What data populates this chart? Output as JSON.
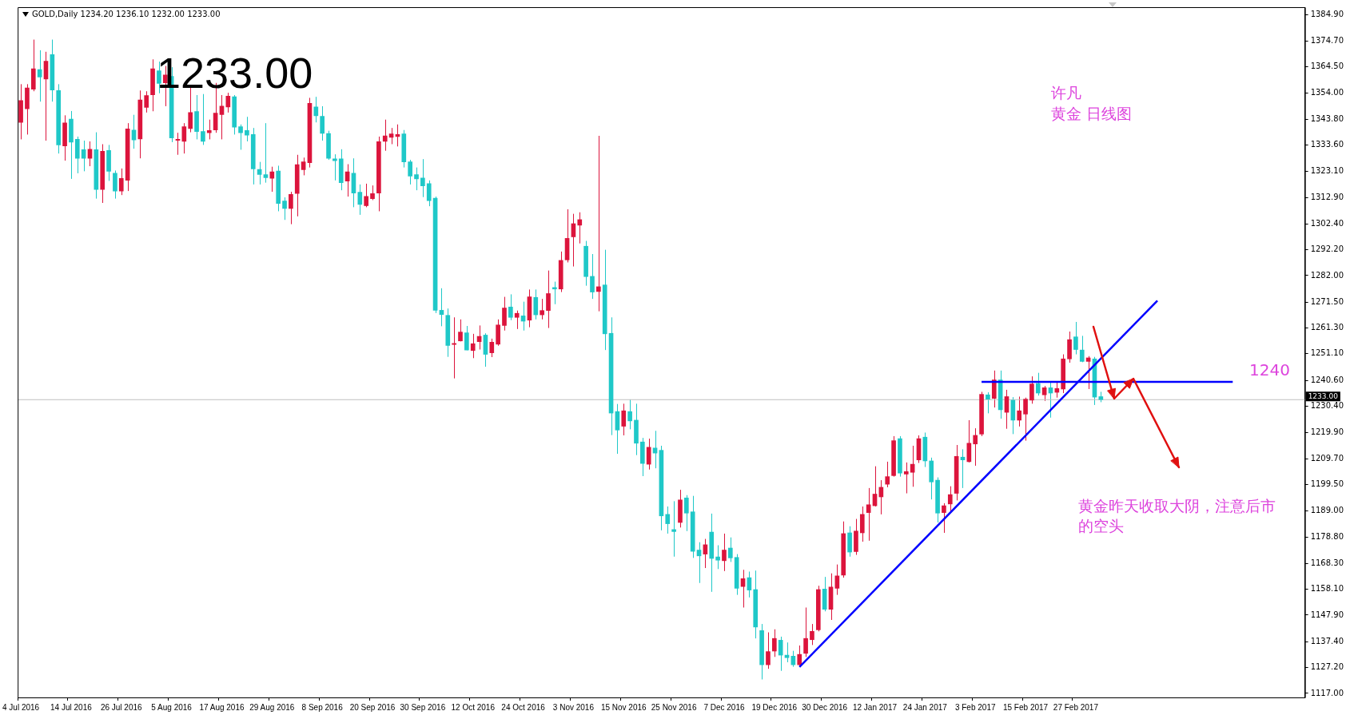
{
  "chart_data": {
    "type": "candlestick",
    "title": "GOLD,Daily 1234.20 1236.10 1232.00 1233.00",
    "categories": [
      "4 Jul 2016",
      null,
      null,
      null,
      null,
      null,
      null,
      null,
      "14 Jul 2016",
      null,
      null,
      null,
      null,
      null,
      null,
      null,
      "26 Jul 2016",
      null,
      null,
      null,
      null,
      null,
      null,
      null,
      "5 Aug 2016",
      null,
      null,
      null,
      null,
      null,
      null,
      null,
      "17 Aug 2016",
      null,
      null,
      null,
      null,
      null,
      null,
      null,
      "29 Aug 2016",
      null,
      null,
      null,
      null,
      null,
      null,
      null,
      "8 Sep 2016",
      null,
      null,
      null,
      null,
      null,
      null,
      null,
      "20 Sep 2016",
      null,
      null,
      null,
      null,
      null,
      null,
      null,
      "30 Sep 2016",
      null,
      null,
      null,
      null,
      null,
      null,
      null,
      "12 Oct 2016",
      null,
      null,
      null,
      null,
      null,
      null,
      null,
      "24 Oct 2016",
      null,
      null,
      null,
      null,
      null,
      null,
      null,
      "3 Nov 2016",
      null,
      null,
      null,
      null,
      null,
      null,
      null,
      "15 Nov 2016",
      null,
      null,
      null,
      null,
      null,
      null,
      null,
      "25 Nov 2016",
      null,
      null,
      null,
      null,
      null,
      null,
      null,
      "7 Dec 2016",
      null,
      null,
      null,
      null,
      null,
      null,
      null,
      "19 Dec 2016",
      null,
      null,
      null,
      null,
      null,
      null,
      null,
      "30 Dec 2016",
      null,
      null,
      null,
      null,
      null,
      null,
      null,
      "12 Jan 2017",
      null,
      null,
      null,
      null,
      null,
      null,
      null,
      "24 Jan 2017",
      null,
      null,
      null,
      null,
      null,
      null,
      null,
      "3 Feb 2017",
      null,
      null,
      null,
      null,
      null,
      null,
      null,
      "15 Feb 2017",
      null,
      null,
      null,
      null,
      null,
      null,
      null,
      "27 Feb 2017",
      null,
      null,
      null,
      null,
      null,
      null,
      null,
      null,
      null,
      null,
      null,
      null,
      null,
      null,
      null,
      null,
      null,
      null,
      null,
      null,
      null,
      null,
      null,
      null,
      null,
      null,
      null,
      null,
      null,
      null,
      null,
      null,
      null,
      null,
      null,
      null
    ],
    "ohlc": [
      [
        1342.5,
        1357.6,
        1335.8,
        1351.1
      ],
      [
        1347.9,
        1357.6,
        1337.7,
        1356.1
      ],
      [
        1355.6,
        1375.2,
        1354.8,
        1363.7
      ],
      [
        1363.4,
        1371.0,
        1350.7,
        1360.4
      ],
      [
        1359.6,
        1370.4,
        1335.3,
        1366.7
      ],
      [
        1369.3,
        1375.2,
        1350.7,
        1355.3
      ],
      [
        1355.1,
        1357.6,
        1330.2,
        1333.6
      ],
      [
        1333.2,
        1345.3,
        1327.4,
        1342.3
      ],
      [
        1343.8,
        1347.0,
        1320.2,
        1334.7
      ],
      [
        1335.8,
        1336.9,
        1322.4,
        1328.3
      ],
      [
        1331.7,
        1335.3,
        1323.2,
        1328.3
      ],
      [
        1328.3,
        1335.0,
        1325.2,
        1331.9
      ],
      [
        1331.7,
        1338.6,
        1312.4,
        1316.0
      ],
      [
        1316.0,
        1333.9,
        1310.7,
        1331.1
      ],
      [
        1331.4,
        1333.6,
        1319.4,
        1323.2
      ],
      [
        1322.4,
        1323.5,
        1312.4,
        1315.4
      ],
      [
        1315.4,
        1324.3,
        1313.8,
        1320.4
      ],
      [
        1319.6,
        1342.2,
        1315.4,
        1339.9
      ],
      [
        1339.5,
        1345.5,
        1332.1,
        1335.6
      ],
      [
        1336.0,
        1355.1,
        1328.3,
        1351.4
      ],
      [
        1348.4,
        1354.8,
        1346.4,
        1353.1
      ],
      [
        1353.4,
        1367.4,
        1346.9,
        1363.7
      ],
      [
        1362.9,
        1366.5,
        1354.0,
        1357.9
      ],
      [
        1358.1,
        1364.8,
        1348.9,
        1361.2
      ],
      [
        1360.7,
        1364.3,
        1334.7,
        1336.4
      ],
      [
        1335.4,
        1338.4,
        1329.7,
        1335.8
      ],
      [
        1335.0,
        1342.2,
        1330.2,
        1340.8
      ],
      [
        1340.1,
        1356.7,
        1338.6,
        1346.4
      ],
      [
        1346.8,
        1353.3,
        1335.8,
        1338.9
      ],
      [
        1338.9,
        1353.7,
        1333.6,
        1335.0
      ],
      [
        1338.4,
        1343.6,
        1335.8,
        1339.3
      ],
      [
        1339.5,
        1358.1,
        1338.4,
        1346.2
      ],
      [
        1345.6,
        1353.3,
        1335.8,
        1348.9
      ],
      [
        1348.6,
        1354.2,
        1346.4,
        1352.9
      ],
      [
        1352.6,
        1353.3,
        1337.7,
        1340.6
      ],
      [
        1340.8,
        1341.7,
        1331.7,
        1338.4
      ],
      [
        1339.3,
        1344.7,
        1335.0,
        1337.5
      ],
      [
        1337.7,
        1340.3,
        1318.0,
        1324.1
      ],
      [
        1323.9,
        1326.9,
        1318.0,
        1321.9
      ],
      [
        1321.9,
        1342.2,
        1318.7,
        1320.7
      ],
      [
        1320.4,
        1325.0,
        1315.1,
        1323.0
      ],
      [
        1323.3,
        1325.4,
        1307.4,
        1310.5
      ],
      [
        1311.5,
        1312.9,
        1304.0,
        1308.5
      ],
      [
        1308.5,
        1315.1,
        1302.3,
        1314.1
      ],
      [
        1314.4,
        1329.7,
        1305.4,
        1325.8
      ],
      [
        1323.8,
        1328.6,
        1321.6,
        1326.9
      ],
      [
        1326.6,
        1352.2,
        1324.7,
        1350.0
      ],
      [
        1348.6,
        1352.6,
        1342.5,
        1345.1
      ],
      [
        1344.9,
        1348.9,
        1335.3,
        1338.2
      ],
      [
        1338.1,
        1339.2,
        1327.7,
        1328.3
      ],
      [
        1328.1,
        1329.9,
        1319.6,
        1327.4
      ],
      [
        1328.1,
        1331.9,
        1315.7,
        1318.7
      ],
      [
        1319.3,
        1326.0,
        1313.2,
        1323.0
      ],
      [
        1322.4,
        1328.3,
        1309.0,
        1314.6
      ],
      [
        1314.9,
        1318.0,
        1306.0,
        1310.1
      ],
      [
        1309.6,
        1318.3,
        1309.0,
        1313.3
      ],
      [
        1312.4,
        1317.6,
        1311.8,
        1314.4
      ],
      [
        1314.6,
        1336.9,
        1307.4,
        1334.9
      ],
      [
        1335.0,
        1343.6,
        1331.3,
        1337.2
      ],
      [
        1336.6,
        1340.3,
        1333.9,
        1338.0
      ],
      [
        1336.9,
        1341.7,
        1333.0,
        1337.7
      ],
      [
        1338.0,
        1339.5,
        1324.7,
        1326.9
      ],
      [
        1326.9,
        1327.7,
        1318.0,
        1321.3
      ],
      [
        1321.9,
        1324.7,
        1315.7,
        1320.2
      ],
      [
        1320.5,
        1328.0,
        1313.0,
        1317.4
      ],
      [
        1318.3,
        1319.6,
        1309.4,
        1311.6
      ],
      [
        1312.6,
        1313.2,
        1267.2,
        1268.3
      ],
      [
        1268.3,
        1277.0,
        1262.0,
        1266.6
      ],
      [
        1266.3,
        1269.0,
        1249.9,
        1254.4
      ],
      [
        1254.8,
        1265.5,
        1241.4,
        1255.2
      ],
      [
        1256.2,
        1264.7,
        1256.0,
        1259.7
      ],
      [
        1259.4,
        1262.1,
        1252.5,
        1252.6
      ],
      [
        1252.4,
        1259.0,
        1249.4,
        1255.1
      ],
      [
        1255.9,
        1262.3,
        1252.8,
        1258.0
      ],
      [
        1258.5,
        1259.2,
        1246.0,
        1250.9
      ],
      [
        1251.5,
        1257.1,
        1249.8,
        1255.7
      ],
      [
        1254.9,
        1264.7,
        1254.3,
        1262.5
      ],
      [
        1262.3,
        1273.6,
        1260.3,
        1269.2
      ],
      [
        1269.6,
        1274.6,
        1264.4,
        1265.5
      ],
      [
        1265.5,
        1268.2,
        1260.9,
        1267.1
      ],
      [
        1266.1,
        1271.7,
        1260.3,
        1264.0
      ],
      [
        1264.4,
        1276.5,
        1261.6,
        1273.6
      ],
      [
        1273.4,
        1276.5,
        1264.7,
        1266.5
      ],
      [
        1266.5,
        1272.8,
        1264.7,
        1268.2
      ],
      [
        1268.2,
        1284.0,
        1261.3,
        1274.9
      ],
      [
        1277.3,
        1279.6,
        1270.7,
        1276.7
      ],
      [
        1276.7,
        1291.5,
        1275.5,
        1288.0
      ],
      [
        1288.2,
        1308.2,
        1287.2,
        1296.7
      ],
      [
        1297.3,
        1306.4,
        1285.6,
        1302.5
      ],
      [
        1301.9,
        1307.0,
        1294.7,
        1304.1
      ],
      [
        1293.6,
        1295.7,
        1278.0,
        1281.6
      ],
      [
        1281.7,
        1290.5,
        1272.8,
        1275.5
      ],
      [
        1275.7,
        1337.2,
        1267.9,
        1277.6
      ],
      [
        1278.3,
        1292.2,
        1252.6,
        1259.0
      ],
      [
        1259.2,
        1265.5,
        1219.0,
        1227.7
      ],
      [
        1228.3,
        1231.3,
        1211.6,
        1221.0
      ],
      [
        1222.5,
        1231.4,
        1218.9,
        1228.6
      ],
      [
        1228.3,
        1233.1,
        1221.3,
        1224.6
      ],
      [
        1224.9,
        1231.4,
        1211.1,
        1215.8
      ],
      [
        1216.3,
        1217.9,
        1202.8,
        1207.8
      ],
      [
        1207.5,
        1217.6,
        1205.4,
        1214.2
      ],
      [
        1213.9,
        1220.7,
        1205.9,
        1211.9
      ],
      [
        1213.0,
        1214.8,
        1181.4,
        1187.1
      ],
      [
        1187.7,
        1190.8,
        1180.1,
        1184.0
      ],
      [
        1181.7,
        1192.9,
        1171.0,
        1180.9
      ],
      [
        1184.5,
        1197.4,
        1182.5,
        1193.4
      ],
      [
        1194.2,
        1195.3,
        1181.1,
        1188.2
      ],
      [
        1188.7,
        1195.0,
        1170.5,
        1173.1
      ],
      [
        1173.6,
        1176.7,
        1160.6,
        1171.3
      ],
      [
        1172.0,
        1178.0,
        1166.5,
        1175.7
      ],
      [
        1180.7,
        1188.0,
        1157.1,
        1170.3
      ],
      [
        1170.9,
        1175.5,
        1166.1,
        1169.6
      ],
      [
        1169.4,
        1180.1,
        1165.3,
        1173.6
      ],
      [
        1174.4,
        1178.6,
        1168.9,
        1170.5
      ],
      [
        1170.7,
        1172.0,
        1155.9,
        1158.5
      ],
      [
        1159.2,
        1165.8,
        1150.9,
        1162.3
      ],
      [
        1162.7,
        1165.1,
        1154.9,
        1157.8
      ],
      [
        1158.0,
        1165.5,
        1138.7,
        1143.2
      ],
      [
        1141.8,
        1144.4,
        1122.5,
        1128.3
      ],
      [
        1128.3,
        1141.1,
        1126.7,
        1133.5
      ],
      [
        1133.7,
        1142.3,
        1131.4,
        1138.7
      ],
      [
        1138.0,
        1139.4,
        1125.9,
        1132.1
      ],
      [
        1132.1,
        1137.1,
        1129.3,
        1131.1
      ],
      [
        1131.7,
        1133.8,
        1127.5,
        1128.3
      ],
      [
        1128.3,
        1135.9,
        1127.5,
        1132.4
      ],
      [
        1132.8,
        1150.9,
        1131.4,
        1138.7
      ],
      [
        1138.2,
        1144.4,
        1136.1,
        1141.5
      ],
      [
        1142.1,
        1159.5,
        1141.5,
        1158.0
      ],
      [
        1158.2,
        1163.0,
        1149.4,
        1150.2
      ],
      [
        1150.2,
        1164.4,
        1146.0,
        1159.0
      ],
      [
        1158.5,
        1167.9,
        1155.9,
        1163.4
      ],
      [
        1163.7,
        1184.9,
        1162.7,
        1180.1
      ],
      [
        1180.4,
        1183.0,
        1171.0,
        1172.8
      ],
      [
        1173.0,
        1185.9,
        1171.7,
        1181.1
      ],
      [
        1180.4,
        1190.8,
        1176.9,
        1187.7
      ],
      [
        1188.4,
        1198.1,
        1177.3,
        1191.5
      ],
      [
        1191.1,
        1206.7,
        1190.8,
        1195.7
      ],
      [
        1194.6,
        1201.2,
        1187.7,
        1198.4
      ],
      [
        1199.6,
        1208.5,
        1198.4,
        1202.6
      ],
      [
        1203.0,
        1218.6,
        1202.6,
        1216.8
      ],
      [
        1217.6,
        1218.6,
        1202.6,
        1204.0
      ],
      [
        1203.6,
        1208.2,
        1196.0,
        1204.6
      ],
      [
        1204.3,
        1214.8,
        1198.6,
        1207.5
      ],
      [
        1209.2,
        1218.9,
        1208.0,
        1217.6
      ],
      [
        1218.2,
        1220.0,
        1206.4,
        1208.8
      ],
      [
        1208.8,
        1210.1,
        1193.6,
        1200.5
      ],
      [
        1201.2,
        1202.3,
        1184.5,
        1188.2
      ],
      [
        1188.4,
        1192.1,
        1180.4,
        1191.1
      ],
      [
        1191.8,
        1198.8,
        1188.2,
        1195.5
      ],
      [
        1196.0,
        1215.1,
        1193.2,
        1210.6
      ],
      [
        1210.3,
        1213.4,
        1198.1,
        1209.2
      ],
      [
        1208.5,
        1224.9,
        1208.2,
        1215.8
      ],
      [
        1215.5,
        1221.7,
        1206.9,
        1218.9
      ],
      [
        1219.4,
        1236.1,
        1218.6,
        1235.1
      ],
      [
        1234.9,
        1235.9,
        1227.6,
        1233.2
      ],
      [
        1233.5,
        1244.5,
        1229.9,
        1240.8
      ],
      [
        1240.8,
        1244.5,
        1225.5,
        1229.0
      ],
      [
        1228.0,
        1236.9,
        1221.5,
        1234.2
      ],
      [
        1232.8,
        1234.0,
        1219.4,
        1224.9
      ],
      [
        1224.9,
        1234.2,
        1222.4,
        1228.6
      ],
      [
        1227.3,
        1233.8,
        1216.8,
        1233.2
      ],
      [
        1232.8,
        1242.2,
        1231.4,
        1239.2
      ],
      [
        1239.4,
        1243.6,
        1234.6,
        1235.6
      ],
      [
        1234.9,
        1238.4,
        1232.5,
        1237.7
      ],
      [
        1237.7,
        1239.8,
        1225.9,
        1235.6
      ],
      [
        1235.9,
        1240.1,
        1233.8,
        1237.4
      ],
      [
        1237.2,
        1250.9,
        1235.6,
        1249.1
      ],
      [
        1249.1,
        1259.9,
        1247.6,
        1256.7
      ],
      [
        1257.8,
        1263.7,
        1250.9,
        1252.8
      ],
      [
        1252.6,
        1258.2,
        1247.8,
        1248.1
      ],
      [
        1248.1,
        1250.2,
        1237.2,
        1249.5
      ],
      [
        1249.1,
        1249.9,
        1230.9,
        1234.0
      ],
      [
        1234.2,
        1236.1,
        1232.0,
        1233.0
      ],
      null,
      null,
      null,
      null,
      null,
      null,
      null,
      null,
      null,
      null,
      null,
      null,
      null,
      null,
      null,
      null,
      null,
      null,
      null,
      null,
      null,
      null,
      null,
      null,
      null,
      null,
      null,
      null,
      null,
      null,
      null,
      null
    ],
    "colors": [
      "#dc143c",
      "#dc143c",
      "#dc143c",
      "#1fc8c8",
      "#dc143c",
      "#1fc8c8",
      "#1fc8c8",
      "#dc143c",
      "#1fc8c8",
      "#1fc8c8",
      "#1fc8c8",
      "#dc143c",
      "#1fc8c8",
      "#dc143c",
      "#1fc8c8",
      "#1fc8c8",
      "#dc143c",
      "#dc143c",
      "#1fc8c8",
      "#dc143c",
      "#dc143c",
      "#dc143c",
      "#1fc8c8",
      "#dc143c",
      "#1fc8c8",
      "#dc143c",
      "#dc143c",
      "#dc143c",
      "#1fc8c8",
      "#1fc8c8",
      "#dc143c",
      "#dc143c",
      "#dc143c",
      "#dc143c",
      "#1fc8c8",
      "#1fc8c8",
      "#1fc8c8",
      "#1fc8c8",
      "#1fc8c8",
      "#1fc8c8",
      "#dc143c",
      "#1fc8c8",
      "#1fc8c8",
      "#dc143c",
      "#dc143c",
      "#dc143c",
      "#dc143c",
      "#1fc8c8",
      "#1fc8c8",
      "#1fc8c8",
      "#1fc8c8",
      "#1fc8c8",
      "#dc143c",
      "#1fc8c8",
      "#1fc8c8",
      "#dc143c",
      "#dc143c",
      "#dc143c",
      "#dc143c",
      "#dc143c",
      "#dc143c",
      "#1fc8c8",
      "#1fc8c8",
      "#1fc8c8",
      "#1fc8c8",
      "#1fc8c8",
      "#1fc8c8",
      "#1fc8c8",
      "#1fc8c8",
      "#dc143c",
      "#dc143c",
      "#1fc8c8",
      "#dc143c",
      "#dc143c",
      "#1fc8c8",
      "#dc143c",
      "#dc143c",
      "#dc143c",
      "#1fc8c8",
      "#dc143c",
      "#1fc8c8",
      "#dc143c",
      "#1fc8c8",
      "#dc143c",
      "#dc143c",
      "#1fc8c8",
      "#dc143c",
      "#dc143c",
      "#dc143c",
      "#dc143c",
      "#1fc8c8",
      "#1fc8c8",
      "#dc143c",
      "#1fc8c8",
      "#1fc8c8",
      "#1fc8c8",
      "#dc143c",
      "#1fc8c8",
      "#1fc8c8",
      "#1fc8c8",
      "#dc143c",
      "#1fc8c8",
      "#1fc8c8",
      "#1fc8c8",
      "#1fc8c8",
      "#dc143c",
      "#1fc8c8",
      "#1fc8c8",
      "#1fc8c8",
      "#dc143c",
      "#1fc8c8",
      "#1fc8c8",
      "#dc143c",
      "#1fc8c8",
      "#1fc8c8",
      "#dc143c",
      "#1fc8c8",
      "#1fc8c8",
      "#1fc8c8",
      "#dc143c",
      "#dc143c",
      "#1fc8c8",
      "#1fc8c8",
      "#1fc8c8",
      "#dc143c",
      "#dc143c",
      "#dc143c",
      "#dc143c",
      "#1fc8c8",
      "#dc143c",
      "#dc143c",
      "#dc143c",
      "#1fc8c8",
      "#dc143c",
      "#dc143c",
      "#dc143c",
      "#dc143c",
      "#dc143c",
      "#dc143c",
      "#dc143c",
      "#1fc8c8",
      "#dc143c",
      "#dc143c",
      "#dc143c",
      "#1fc8c8",
      "#1fc8c8",
      "#1fc8c8",
      "#dc143c",
      "#dc143c",
      "#dc143c",
      "#1fc8c8",
      "#dc143c",
      "#dc143c",
      "#dc143c",
      "#1fc8c8",
      "#dc143c",
      "#1fc8c8",
      "#dc143c",
      "#1fc8c8",
      "#dc143c",
      "#dc143c",
      "#dc143c",
      "#1fc8c8",
      "#dc143c",
      "#1fc8c8",
      "#dc143c",
      "#dc143c",
      "#dc143c",
      "#1fc8c8",
      "#1fc8c8",
      "#dc143c",
      "#1fc8c8",
      "#1fc8c8",
      null,
      null,
      null,
      null,
      null,
      null,
      null,
      null,
      null,
      null,
      null,
      null,
      null,
      null,
      null,
      null,
      null,
      null,
      null,
      null,
      null,
      null,
      null,
      null,
      null,
      null,
      null,
      null,
      null,
      null,
      null,
      null
    ],
    "series": [
      {
        "type": "line",
        "color": "#0000ff",
        "values": [
          null,
          null,
          null,
          null,
          null,
          null,
          null,
          null,
          null,
          null,
          null,
          null,
          null,
          null,
          null,
          null,
          null,
          null,
          null,
          null,
          null,
          null,
          null,
          null,
          null,
          null,
          null,
          null,
          null,
          null,
          null,
          null,
          null,
          null,
          null,
          null,
          null,
          null,
          null,
          null,
          null,
          null,
          null,
          null,
          null,
          null,
          null,
          null,
          null,
          null,
          null,
          null,
          null,
          null,
          null,
          null,
          null,
          null,
          null,
          null,
          null,
          null,
          null,
          null,
          null,
          null,
          null,
          null,
          null,
          null,
          null,
          null,
          null,
          null,
          null,
          null,
          null,
          null,
          null,
          null,
          null,
          null,
          null,
          null,
          null,
          null,
          null,
          null,
          null,
          null,
          null,
          null,
          null,
          null,
          null,
          null,
          null,
          null,
          null,
          null,
          null,
          null,
          null,
          null,
          null,
          null,
          null,
          null,
          null,
          null,
          null,
          null,
          null,
          null,
          null,
          null,
          null,
          null,
          null,
          null,
          null,
          null,
          null,
          null,
          1127.4,
          null,
          null,
          null,
          null,
          null,
          null,
          null,
          null,
          null,
          null,
          null,
          null,
          null,
          null,
          null,
          null,
          null,
          null,
          null,
          null,
          null,
          null,
          null,
          null,
          null,
          null,
          null,
          null,
          null,
          null,
          null,
          null,
          null,
          null,
          null,
          null,
          null,
          null,
          null,
          null,
          null,
          null,
          null,
          null,
          null,
          null,
          null,
          null,
          null,
          null,
          null,
          null,
          null,
          null,
          null,
          null,
          1272.1,
          null,
          null,
          null,
          null,
          null,
          null,
          null,
          null,
          null,
          null,
          null,
          null,
          null,
          null,
          null,
          null,
          null,
          null,
          null,
          null,
          null,
          null,
          null
        ]
      },
      {
        "type": "line",
        "name": "1240",
        "color": "#0000ff",
        "values": [
          null,
          null,
          null,
          null,
          null,
          null,
          null,
          null,
          null,
          null,
          null,
          null,
          null,
          null,
          null,
          null,
          null,
          null,
          null,
          null,
          null,
          null,
          null,
          null,
          null,
          null,
          null,
          null,
          null,
          null,
          null,
          null,
          null,
          null,
          null,
          null,
          null,
          null,
          null,
          null,
          null,
          null,
          null,
          null,
          null,
          null,
          null,
          null,
          null,
          null,
          null,
          null,
          null,
          null,
          null,
          null,
          null,
          null,
          null,
          null,
          null,
          null,
          null,
          null,
          null,
          null,
          null,
          null,
          null,
          null,
          null,
          null,
          null,
          null,
          null,
          null,
          null,
          null,
          null,
          null,
          null,
          null,
          null,
          null,
          null,
          null,
          null,
          null,
          null,
          null,
          null,
          null,
          null,
          null,
          null,
          null,
          null,
          null,
          null,
          null,
          null,
          null,
          null,
          null,
          null,
          null,
          null,
          null,
          null,
          null,
          null,
          null,
          null,
          null,
          null,
          null,
          null,
          null,
          null,
          null,
          null,
          null,
          null,
          null,
          null,
          null,
          null,
          null,
          null,
          null,
          null,
          null,
          null,
          null,
          null,
          null,
          null,
          null,
          null,
          null,
          null,
          null,
          null,
          null,
          null,
          null,
          null,
          null,
          null,
          null,
          null,
          null,
          null,
          1240,
          null,
          null,
          null,
          null,
          null,
          null,
          null,
          null,
          null,
          null,
          null,
          null,
          null,
          null,
          null,
          null,
          null,
          null,
          null,
          null,
          null,
          null,
          null,
          null,
          null,
          null,
          null,
          null,
          null,
          null,
          null,
          null,
          null,
          null,
          null,
          null,
          null,
          null,
          null,
          1240,
          null,
          null,
          null,
          null,
          null,
          null,
          null,
          null,
          null,
          null,
          null
        ]
      }
    ],
    "ylim": [
      1115.4,
      1388.0
    ],
    "yticks": [
      {
        "value": 1117.0,
        "label": "1117.00"
      },
      {
        "value": 1127.2,
        "label": "1127.20"
      },
      {
        "value": 1137.4,
        "label": "1137.40"
      },
      {
        "value": 1147.9,
        "label": "1147.90"
      },
      {
        "value": 1158.1,
        "label": "1158.10"
      },
      {
        "value": 1168.3,
        "label": "1168.30"
      },
      {
        "value": 1178.8,
        "label": "1178.80"
      },
      {
        "value": 1189.0,
        "label": "1189.00"
      },
      {
        "value": 1199.5,
        "label": "1199.50"
      },
      {
        "value": 1209.7,
        "label": "1209.70"
      },
      {
        "value": 1219.9,
        "label": "1219.90"
      },
      {
        "value": 1230.4,
        "label": "1230.40"
      },
      {
        "value": 1240.6,
        "label": "1240.60"
      },
      {
        "value": 1251.1,
        "label": "1251.10"
      },
      {
        "value": 1261.3,
        "label": "1261.30"
      },
      {
        "value": 1271.5,
        "label": "1271.50"
      },
      {
        "value": 1282.0,
        "label": "1282.00"
      },
      {
        "value": 1292.2,
        "label": "1292.20"
      },
      {
        "value": 1302.4,
        "label": "1302.40"
      },
      {
        "value": 1312.9,
        "label": "1312.90"
      },
      {
        "value": 1323.1,
        "label": "1323.10"
      },
      {
        "value": 1333.6,
        "label": "1333.60"
      },
      {
        "value": 1343.8,
        "label": "1343.80"
      },
      {
        "value": 1354.0,
        "label": "1354.00"
      },
      {
        "value": 1364.5,
        "label": "1364.50"
      },
      {
        "value": 1374.7,
        "label": "1374.70"
      },
      {
        "value": 1384.9,
        "label": "1384.90"
      }
    ],
    "ref_lines": [
      {
        "axis": "y",
        "value": 1233.0,
        "label": "1233.00",
        "color": "#c0c0c0"
      }
    ],
    "annotations": [
      "1233.00",
      "许凡",
      "黄金 日线图",
      "黄金昨天收取大阴，注意后市的空头"
    ]
  }
}
